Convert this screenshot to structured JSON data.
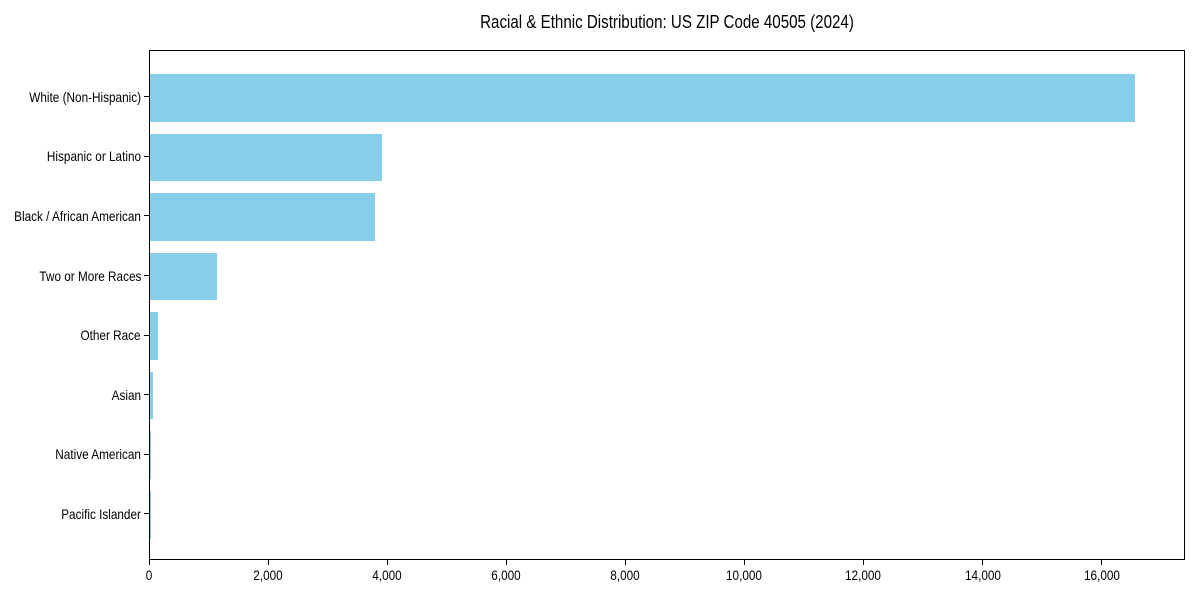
{
  "chart_data": {
    "type": "bar",
    "orientation": "horizontal",
    "title": "Racial & Ethnic Distribution: US ZIP Code 40505 (2024)",
    "categories": [
      "White (Non-Hispanic)",
      "Hispanic or Latino",
      "Black / African American",
      "Two or More Races",
      "Other Race",
      "Asian",
      "Native American",
      "Pacific Islander"
    ],
    "values": [
      16570,
      3910,
      3780,
      1120,
      140,
      55,
      20,
      4
    ],
    "bar_color": "#87CEEB",
    "text_color": "#000000",
    "spine_color": "#000000",
    "xlabel": "",
    "ylabel": "",
    "xlim": [
      0,
      17400
    ],
    "x_ticks": [
      0,
      2000,
      4000,
      6000,
      8000,
      10000,
      12000,
      14000,
      16000
    ],
    "x_tick_labels": [
      "0",
      "2,000",
      "4,000",
      "6,000",
      "8,000",
      "10,000",
      "12,000",
      "14,000",
      "16,000"
    ],
    "grid": false,
    "legend": null
  }
}
